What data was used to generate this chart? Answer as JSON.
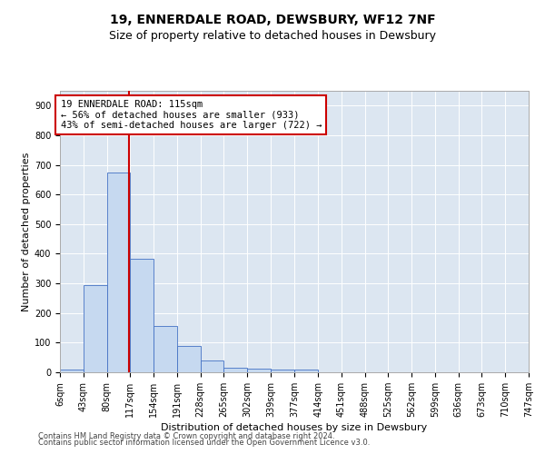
{
  "title": "19, ENNERDALE ROAD, DEWSBURY, WF12 7NF",
  "subtitle": "Size of property relative to detached houses in Dewsbury",
  "xlabel": "Distribution of detached houses by size in Dewsbury",
  "ylabel": "Number of detached properties",
  "bin_edges": [
    6,
    43,
    80,
    117,
    154,
    191,
    228,
    265,
    302,
    339,
    377,
    414,
    451,
    488,
    525,
    562,
    599,
    636,
    673,
    710,
    747
  ],
  "bar_heights": [
    10,
    295,
    675,
    383,
    155,
    90,
    40,
    15,
    13,
    10,
    8,
    0,
    0,
    0,
    0,
    0,
    0,
    0,
    0,
    0
  ],
  "bar_facecolor": "#c6d9f0",
  "bar_edgecolor": "#4472c4",
  "vline_x": 115,
  "vline_color": "#cc0000",
  "annotation_line1": "19 ENNERDALE ROAD: 115sqm",
  "annotation_line2": "← 56% of detached houses are smaller (933)",
  "annotation_line3": "43% of semi-detached houses are larger (722) →",
  "annotation_box_edgecolor": "#cc0000",
  "annotation_box_facecolor": "#ffffff",
  "ylim": [
    0,
    950
  ],
  "yticks": [
    0,
    100,
    200,
    300,
    400,
    500,
    600,
    700,
    800,
    900
  ],
  "plot_background_color": "#dce6f1",
  "footer_line1": "Contains HM Land Registry data © Crown copyright and database right 2024.",
  "footer_line2": "Contains public sector information licensed under the Open Government Licence v3.0.",
  "title_fontsize": 10,
  "subtitle_fontsize": 9,
  "tick_label_fontsize": 7,
  "ylabel_fontsize": 8,
  "xlabel_fontsize": 8,
  "annotation_fontsize": 7.5,
  "footer_fontsize": 6
}
